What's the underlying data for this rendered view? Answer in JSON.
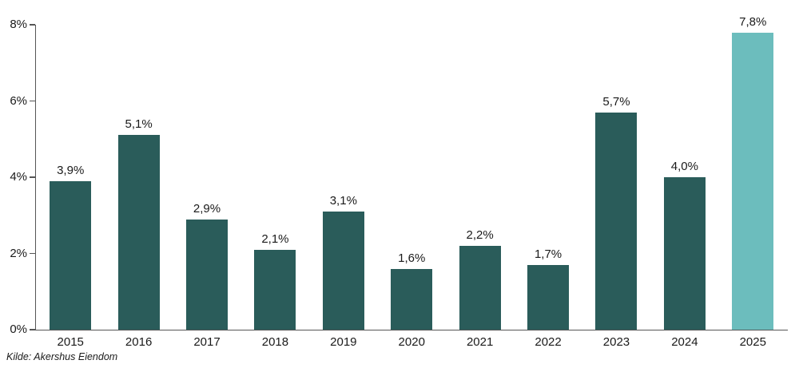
{
  "chart_data": {
    "type": "bar",
    "categories": [
      "2015",
      "2016",
      "2017",
      "2018",
      "2019",
      "2020",
      "2021",
      "2022",
      "2023",
      "2024",
      "2025"
    ],
    "values": [
      3.9,
      5.1,
      2.9,
      2.1,
      3.1,
      1.6,
      2.2,
      1.7,
      5.7,
      4.0,
      7.8
    ],
    "value_labels": [
      "3,9%",
      "5,1%",
      "2,9%",
      "2,1%",
      "3,1%",
      "1,6%",
      "2,2%",
      "1,7%",
      "5,7%",
      "4,0%",
      "7,8%"
    ],
    "title": "",
    "xlabel": "",
    "ylabel": "",
    "ylim": [
      0,
      8
    ],
    "yticks": [
      0,
      2,
      4,
      6,
      8
    ],
    "ytick_labels": [
      "0%",
      "2%",
      "4%",
      "6%",
      "8%"
    ],
    "grid": false,
    "legend": null,
    "bar_color": "#2A5C5A",
    "highlight_index": 10,
    "highlight_color": "#6CBDBD",
    "axis_color": "#565656"
  },
  "source": {
    "text": "Kilde: Akershus Eiendom"
  }
}
